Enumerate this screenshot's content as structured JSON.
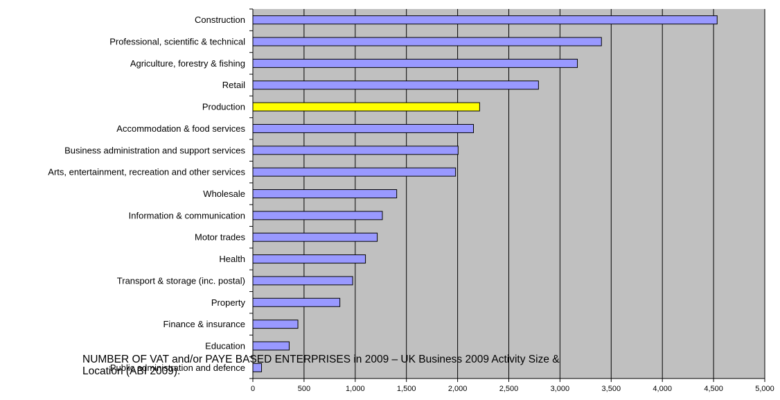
{
  "chart_data": {
    "type": "bar",
    "orientation": "horizontal",
    "categories": [
      "Construction",
      "Professional, scientific & technical",
      "Agriculture, forestry & fishing",
      "Retail",
      "Production",
      "Accommodation & food services",
      "Business administration and support services",
      "Arts, entertainment, recreation and other services",
      "Wholesale",
      "Information & communication",
      "Motor trades",
      "Health",
      "Transport & storage (inc. postal)",
      "Property",
      "Finance & insurance",
      "Education",
      "Public administration and defence"
    ],
    "values": [
      4535,
      3405,
      3170,
      2790,
      2215,
      2155,
      2005,
      1980,
      1405,
      1265,
      1215,
      1100,
      975,
      850,
      440,
      355,
      85
    ],
    "highlight_category": "Production",
    "xlim": [
      0,
      5000
    ],
    "xticks": [
      0,
      500,
      1000,
      1500,
      2000,
      2500,
      3000,
      3500,
      4000,
      4500,
      5000
    ],
    "xtick_labels": [
      "0",
      "500",
      "1,000",
      "1,500",
      "2,000",
      "2,500",
      "3,000",
      "3,500",
      "4,000",
      "4,500",
      "5,000"
    ],
    "grid": true,
    "legend": "none",
    "colors": {
      "bar": "#9999ff",
      "highlight": "#ffff00",
      "plot_background": "#c0c0c0",
      "bar_border": "#000000"
    }
  },
  "caption": "NUMBER OF VAT and/or PAYE BASED ENTERPRISES in 2009 – UK Business 2009 Activity Size & Location (ABI 2009)."
}
